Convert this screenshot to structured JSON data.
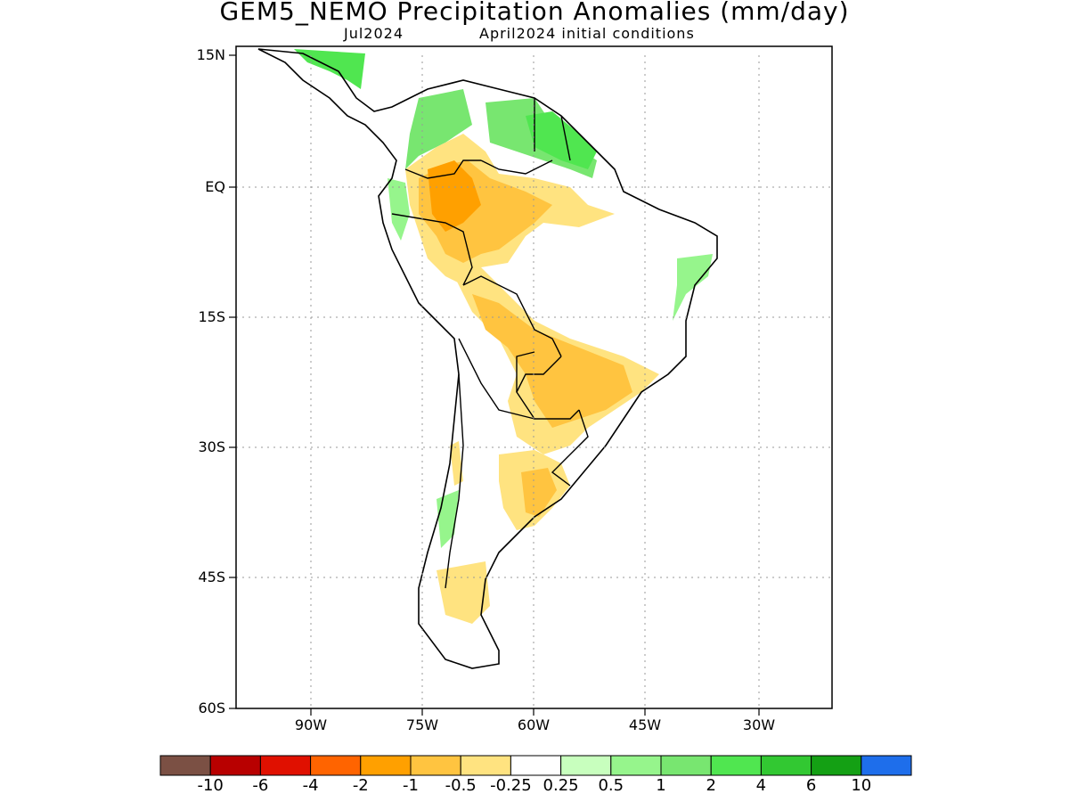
{
  "title": "GEM5_NEMO Precipitation Anomalies (mm/day)",
  "subtitle_left": "Jul2024",
  "subtitle_right": "April2024 initial conditions",
  "map": {
    "lat_labels": [
      "15N",
      "EQ",
      "15S",
      "30S",
      "45S",
      "60S"
    ],
    "lon_labels": [
      "90W",
      "75W",
      "60W",
      "45W",
      "30W"
    ],
    "gridlines": "dotted",
    "region": "South America"
  },
  "colorbar": {
    "colors": [
      "#7b5044",
      "#b80000",
      "#e01000",
      "#ff6400",
      "#ffa000",
      "#ffc440",
      "#ffe380",
      "#ffffff",
      "#c8ffbe",
      "#96f58c",
      "#78e670",
      "#50e650",
      "#32c832",
      "#14a014",
      "#1e6eeb"
    ],
    "labels": [
      "-10",
      "-6",
      "-4",
      "-2",
      "-1",
      "-0.5",
      "-0.25",
      "0.25",
      "0.5",
      "1",
      "2",
      "4",
      "6",
      "10"
    ]
  }
}
